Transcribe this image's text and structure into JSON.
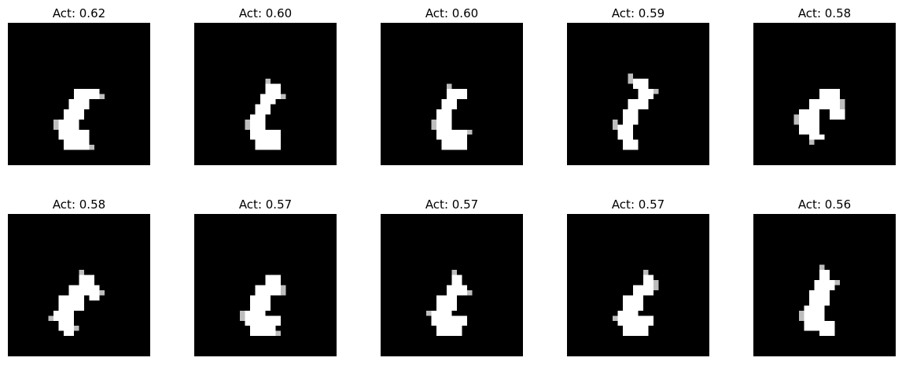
{
  "figure": {
    "background": "#ffffff",
    "panel_background": "#000000",
    "glyph_color": "#ffffff"
  },
  "panels": [
    {
      "title": "Act: 0.62",
      "activation": 0.62
    },
    {
      "title": "Act: 0.60",
      "activation": 0.6
    },
    {
      "title": "Act: 0.60",
      "activation": 0.6
    },
    {
      "title": "Act: 0.59",
      "activation": 0.59
    },
    {
      "title": "Act: 0.58",
      "activation": 0.58
    },
    {
      "title": "Act: 0.58",
      "activation": 0.58
    },
    {
      "title": "Act: 0.57",
      "activation": 0.57
    },
    {
      "title": "Act: 0.57",
      "activation": 0.57
    },
    {
      "title": "Act: 0.57",
      "activation": 0.57
    },
    {
      "title": "Act: 0.56",
      "activation": 0.56
    }
  ]
}
